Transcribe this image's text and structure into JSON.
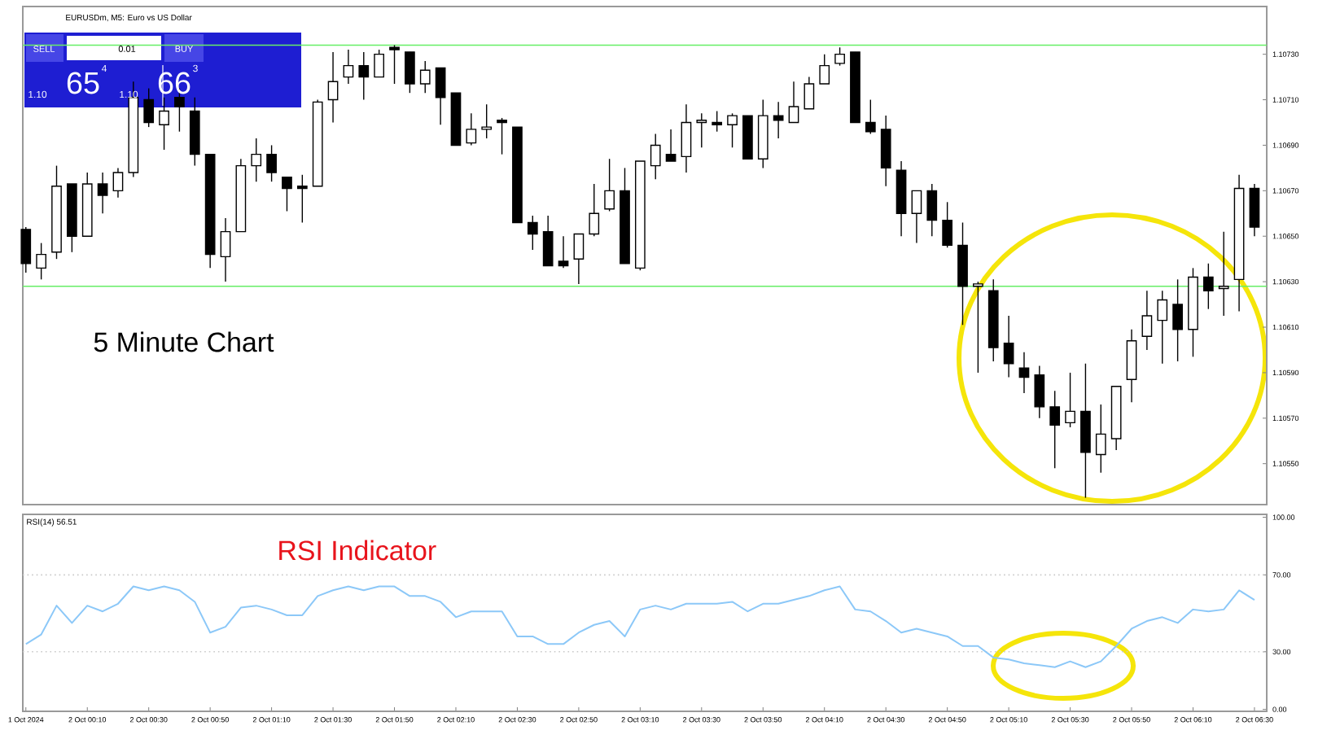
{
  "chart_data": [
    {
      "type": "candlestick",
      "title": "EURUSDm, M5: Euro vs US Dollar",
      "color": "#000000",
      "annotations": [
        "5 Minute Chart",
        "SELL",
        "0.01",
        "BUY",
        "1.10",
        "65",
        "4",
        "1.10",
        "66",
        "3"
      ],
      "x": [
        "2024-10-01T23:50",
        "2024-10-01T23:55",
        "2024-10-02T00:00",
        "2024-10-02T00:05",
        "2024-10-02T00:10",
        "2024-10-02T00:15",
        "2024-10-02T00:20",
        "2024-10-02T00:25",
        "2024-10-02T00:30",
        "2024-10-02T00:35",
        "2024-10-02T00:40",
        "2024-10-02T00:45",
        "2024-10-02T00:50",
        "2024-10-02T00:55",
        "2024-10-02T01:00",
        "2024-10-02T01:05",
        "2024-10-02T01:10",
        "2024-10-02T01:15",
        "2024-10-02T01:20",
        "2024-10-02T01:25",
        "2024-10-02T01:30",
        "2024-10-02T01:35",
        "2024-10-02T01:40",
        "2024-10-02T01:45",
        "2024-10-02T01:50",
        "2024-10-02T01:55",
        "2024-10-02T02:00",
        "2024-10-02T02:05",
        "2024-10-02T02:10",
        "2024-10-02T02:15",
        "2024-10-02T02:20",
        "2024-10-02T02:25",
        "2024-10-02T02:30",
        "2024-10-02T02:35",
        "2024-10-02T02:40",
        "2024-10-02T02:45",
        "2024-10-02T02:50",
        "2024-10-02T02:55",
        "2024-10-02T03:00",
        "2024-10-02T03:05",
        "2024-10-02T03:10",
        "2024-10-02T03:15",
        "2024-10-02T03:20",
        "2024-10-02T03:25",
        "2024-10-02T03:30",
        "2024-10-02T03:35",
        "2024-10-02T03:40",
        "2024-10-02T03:45",
        "2024-10-02T03:50",
        "2024-10-02T03:55",
        "2024-10-02T04:00",
        "2024-10-02T04:05",
        "2024-10-02T04:10",
        "2024-10-02T04:15",
        "2024-10-02T04:20",
        "2024-10-02T04:25",
        "2024-10-02T04:30",
        "2024-10-02T04:35",
        "2024-10-02T04:40",
        "2024-10-02T04:45",
        "2024-10-02T04:50",
        "2024-10-02T04:55",
        "2024-10-02T05:00",
        "2024-10-02T05:05",
        "2024-10-02T05:10",
        "2024-10-02T05:15",
        "2024-10-02T05:20",
        "2024-10-02T05:25",
        "2024-10-02T05:30",
        "2024-10-02T05:35",
        "2024-10-02T05:40",
        "2024-10-02T05:45",
        "2024-10-02T05:50",
        "2024-10-02T05:55",
        "2024-10-02T06:00",
        "2024-10-02T06:05",
        "2024-10-02T06:10",
        "2024-10-02T06:15",
        "2024-10-02T06:20",
        "2024-10-02T06:25",
        "2024-10-02T06:30"
      ],
      "ohlc": [
        [
          1.10653,
          1.10654,
          1.10634,
          1.10638
        ],
        [
          1.10636,
          1.10647,
          1.10631,
          1.10642
        ],
        [
          1.10643,
          1.10681,
          1.1064,
          1.10672
        ],
        [
          1.10673,
          1.10673,
          1.10643,
          1.1065
        ],
        [
          1.1065,
          1.10678,
          1.1065,
          1.10673
        ],
        [
          1.10673,
          1.10678,
          1.1066,
          1.10668
        ],
        [
          1.1067,
          1.1068,
          1.10667,
          1.10678
        ],
        [
          1.10678,
          1.10718,
          1.10676,
          1.10711
        ],
        [
          1.1071,
          1.10715,
          1.10698,
          1.107
        ],
        [
          1.10699,
          1.10711,
          1.10688,
          1.10705
        ],
        [
          1.10711,
          1.10715,
          1.10696,
          1.10707
        ],
        [
          1.10705,
          1.10711,
          1.10681,
          1.10686
        ],
        [
          1.10686,
          1.10686,
          1.10636,
          1.10642
        ],
        [
          1.10641,
          1.10658,
          1.1063,
          1.10652
        ],
        [
          1.10652,
          1.10684,
          1.10652,
          1.10681
        ],
        [
          1.10681,
          1.10693,
          1.10674,
          1.10686
        ],
        [
          1.10686,
          1.1069,
          1.10674,
          1.10678
        ],
        [
          1.10676,
          1.10676,
          1.10661,
          1.10671
        ],
        [
          1.10672,
          1.10677,
          1.10656,
          1.10671
        ],
        [
          1.10672,
          1.1071,
          1.10672,
          1.10709
        ],
        [
          1.1071,
          1.10731,
          1.107,
          1.10718
        ],
        [
          1.1072,
          1.10732,
          1.10717,
          1.10725
        ],
        [
          1.10725,
          1.10731,
          1.1071,
          1.1072
        ],
        [
          1.1072,
          1.10732,
          1.1072,
          1.1073
        ],
        [
          1.10733,
          1.10734,
          1.10717,
          1.10732
        ],
        [
          1.10731,
          1.10731,
          1.10713,
          1.10717
        ],
        [
          1.10717,
          1.10727,
          1.10713,
          1.10723
        ],
        [
          1.10724,
          1.10724,
          1.10699,
          1.10711
        ],
        [
          1.10713,
          1.10713,
          1.1069,
          1.1069
        ],
        [
          1.10691,
          1.10704,
          1.1069,
          1.10697
        ],
        [
          1.10697,
          1.10708,
          1.10693,
          1.10698
        ],
        [
          1.10701,
          1.10702,
          1.10686,
          1.107
        ],
        [
          1.10698,
          1.10698,
          1.10656,
          1.10656
        ],
        [
          1.10656,
          1.10659,
          1.10644,
          1.10651
        ],
        [
          1.10652,
          1.10659,
          1.10637,
          1.10637
        ],
        [
          1.10639,
          1.1065,
          1.10636,
          1.10637
        ],
        [
          1.1064,
          1.10651,
          1.10629,
          1.10651
        ],
        [
          1.10651,
          1.10673,
          1.1065,
          1.1066
        ],
        [
          1.10662,
          1.10684,
          1.10661,
          1.1067
        ],
        [
          1.1067,
          1.1068,
          1.10638,
          1.10638
        ],
        [
          1.10636,
          1.10683,
          1.10635,
          1.10683
        ],
        [
          1.10681,
          1.10695,
          1.10675,
          1.1069
        ],
        [
          1.10686,
          1.10697,
          1.10683,
          1.10683
        ],
        [
          1.10685,
          1.10708,
          1.10678,
          1.107
        ],
        [
          1.107,
          1.10704,
          1.10689,
          1.10701
        ],
        [
          1.107,
          1.10705,
          1.10696,
          1.10699
        ],
        [
          1.10699,
          1.10704,
          1.10689,
          1.10703
        ],
        [
          1.10703,
          1.10703,
          1.10684,
          1.10684
        ],
        [
          1.10684,
          1.1071,
          1.1068,
          1.10703
        ],
        [
          1.10703,
          1.10709,
          1.10693,
          1.10701
        ],
        [
          1.107,
          1.10718,
          1.107,
          1.10707
        ],
        [
          1.10706,
          1.1072,
          1.10706,
          1.10717
        ],
        [
          1.10717,
          1.1073,
          1.10717,
          1.10725
        ],
        [
          1.10726,
          1.10733,
          1.10725,
          1.1073
        ],
        [
          1.10731,
          1.10731,
          1.107,
          1.107
        ],
        [
          1.107,
          1.1071,
          1.10695,
          1.10696
        ],
        [
          1.10697,
          1.10703,
          1.10672,
          1.1068
        ],
        [
          1.10679,
          1.10683,
          1.1065,
          1.1066
        ],
        [
          1.1066,
          1.1067,
          1.10647,
          1.1067
        ],
        [
          1.1067,
          1.10673,
          1.1065,
          1.10657
        ],
        [
          1.10657,
          1.10665,
          1.10645,
          1.10646
        ],
        [
          1.10646,
          1.10656,
          1.10611,
          1.10628
        ],
        [
          1.10628,
          1.1063,
          1.1059,
          1.10629
        ],
        [
          1.10626,
          1.10631,
          1.10595,
          1.10601
        ],
        [
          1.10603,
          1.10615,
          1.10588,
          1.10594
        ],
        [
          1.10592,
          1.10599,
          1.10581,
          1.10588
        ],
        [
          1.10589,
          1.10593,
          1.1057,
          1.10575
        ],
        [
          1.10575,
          1.10582,
          1.10548,
          1.10567
        ],
        [
          1.10568,
          1.1059,
          1.10566,
          1.10573
        ],
        [
          1.10573,
          1.10594,
          1.10535,
          1.10555
        ],
        [
          1.10554,
          1.10576,
          1.10546,
          1.10563
        ],
        [
          1.10561,
          1.10584,
          1.10556,
          1.10584
        ],
        [
          1.10587,
          1.10609,
          1.10577,
          1.10604
        ],
        [
          1.10606,
          1.10626,
          1.106,
          1.10615
        ],
        [
          1.10613,
          1.10626,
          1.10594,
          1.10622
        ],
        [
          1.1062,
          1.10631,
          1.10595,
          1.10609
        ],
        [
          1.10609,
          1.10636,
          1.10597,
          1.10632
        ],
        [
          1.10632,
          1.10638,
          1.10618,
          1.10626
        ],
        [
          1.10627,
          1.10652,
          1.10615,
          1.10628
        ],
        [
          1.10631,
          1.10677,
          1.10617,
          1.10671
        ],
        [
          1.10671,
          1.10673,
          1.1065,
          1.10654
        ]
      ],
      "xlim": [
        "2024-10-01T23:49",
        "2024-10-02T06:34"
      ],
      "ylim": [
        1.10532,
        1.10751
      ],
      "yticks": [
        {
          "value": 1.1073,
          "label": "1.10730"
        },
        {
          "value": 1.1071,
          "label": "1.10710"
        },
        {
          "value": 1.1069,
          "label": "1.10690"
        },
        {
          "value": 1.1067,
          "label": "1.10670"
        },
        {
          "value": 1.1065,
          "label": "1.10650"
        },
        {
          "value": 1.1063,
          "label": "1.10630"
        },
        {
          "value": 1.1061,
          "label": "1.10610"
        },
        {
          "value": 1.1059,
          "label": "1.10590"
        },
        {
          "value": 1.1057,
          "label": "1.10570"
        },
        {
          "value": 1.1055,
          "label": "1.10550"
        }
      ],
      "ref_lines": [
        {
          "axis": "y",
          "value": 1.10734,
          "color": "#66ee66",
          "line_style": "solid"
        },
        {
          "axis": "y",
          "value": 1.10628,
          "color": "#66ee66",
          "line_style": "solid"
        }
      ],
      "tick_labels": "y"
    },
    {
      "type": "line",
      "title": "RSI(14) 56.51",
      "annotations": [
        "RSI Indicator"
      ],
      "x": [
        "2024-10-01T23:50",
        "2024-10-01T23:55",
        "2024-10-02T00:00",
        "2024-10-02T00:05",
        "2024-10-02T00:10",
        "2024-10-02T00:15",
        "2024-10-02T00:20",
        "2024-10-02T00:25",
        "2024-10-02T00:30",
        "2024-10-02T00:35",
        "2024-10-02T00:40",
        "2024-10-02T00:45",
        "2024-10-02T00:50",
        "2024-10-02T00:55",
        "2024-10-02T01:00",
        "2024-10-02T01:05",
        "2024-10-02T01:10",
        "2024-10-02T01:15",
        "2024-10-02T01:20",
        "2024-10-02T01:25",
        "2024-10-02T01:30",
        "2024-10-02T01:35",
        "2024-10-02T01:40",
        "2024-10-02T01:45",
        "2024-10-02T01:50",
        "2024-10-02T01:55",
        "2024-10-02T02:00",
        "2024-10-02T02:05",
        "2024-10-02T02:10",
        "2024-10-02T02:15",
        "2024-10-02T02:20",
        "2024-10-02T02:25",
        "2024-10-02T02:30",
        "2024-10-02T02:35",
        "2024-10-02T02:40",
        "2024-10-02T02:45",
        "2024-10-02T02:50",
        "2024-10-02T02:55",
        "2024-10-02T03:00",
        "2024-10-02T03:05",
        "2024-10-02T03:10",
        "2024-10-02T03:15",
        "2024-10-02T03:20",
        "2024-10-02T03:25",
        "2024-10-02T03:30",
        "2024-10-02T03:35",
        "2024-10-02T03:40",
        "2024-10-02T03:45",
        "2024-10-02T03:50",
        "2024-10-02T03:55",
        "2024-10-02T04:00",
        "2024-10-02T04:05",
        "2024-10-02T04:10",
        "2024-10-02T04:15",
        "2024-10-02T04:20",
        "2024-10-02T04:25",
        "2024-10-02T04:30",
        "2024-10-02T04:35",
        "2024-10-02T04:40",
        "2024-10-02T04:45",
        "2024-10-02T04:50",
        "2024-10-02T04:55",
        "2024-10-02T05:00",
        "2024-10-02T05:05",
        "2024-10-02T05:10",
        "2024-10-02T05:15",
        "2024-10-02T05:20",
        "2024-10-02T05:25",
        "2024-10-02T05:30",
        "2024-10-02T05:35",
        "2024-10-02T05:40",
        "2024-10-02T05:45",
        "2024-10-02T05:50",
        "2024-10-02T05:55",
        "2024-10-02T06:00",
        "2024-10-02T06:05",
        "2024-10-02T06:10",
        "2024-10-02T06:15",
        "2024-10-02T06:20",
        "2024-10-02T06:25",
        "2024-10-02T06:30"
      ],
      "series": [
        {
          "color": "#8cc8f8",
          "values": [
            34,
            39,
            54,
            45,
            54,
            51,
            55,
            64,
            62,
            64,
            62,
            56,
            40,
            43,
            53,
            54,
            52,
            49,
            49,
            59,
            62,
            64,
            62,
            64,
            64,
            59,
            59,
            56,
            48,
            51,
            51,
            51,
            38,
            38,
            34,
            34,
            40,
            44,
            46,
            38,
            52,
            54,
            52,
            55,
            55,
            55,
            56,
            51,
            55,
            55,
            57,
            59,
            62,
            64,
            52,
            51,
            46,
            40,
            42,
            40,
            38,
            33,
            33,
            27,
            26,
            24,
            23,
            22,
            25,
            22,
            25,
            33,
            42,
            46,
            48,
            45,
            52,
            51,
            52,
            62,
            57
          ]
        }
      ],
      "xlim": [
        "2024-10-01T23:49",
        "2024-10-02T06:34"
      ],
      "ylim": [
        -1,
        101.5
      ],
      "yticks": [
        {
          "value": 100,
          "label": "100.00"
        },
        {
          "value": 70,
          "label": "70.00"
        },
        {
          "value": 30,
          "label": "30.00"
        },
        {
          "value": 0,
          "label": "0.00"
        }
      ],
      "xticks": [
        {
          "value": "2024-10-01T23:50",
          "label": "1 Oct 2024"
        },
        {
          "value": "2024-10-02T00:10",
          "label": "2 Oct 00:10"
        },
        {
          "value": "2024-10-02T00:30",
          "label": "2 Oct 00:30"
        },
        {
          "value": "2024-10-02T00:50",
          "label": "2 Oct 00:50"
        },
        {
          "value": "2024-10-02T01:10",
          "label": "2 Oct 01:10"
        },
        {
          "value": "2024-10-02T01:30",
          "label": "2 Oct 01:30"
        },
        {
          "value": "2024-10-02T01:50",
          "label": "2 Oct 01:50"
        },
        {
          "value": "2024-10-02T02:10",
          "label": "2 Oct 02:10"
        },
        {
          "value": "2024-10-02T02:30",
          "label": "2 Oct 02:30"
        },
        {
          "value": "2024-10-02T02:50",
          "label": "2 Oct 02:50"
        },
        {
          "value": "2024-10-02T03:10",
          "label": "2 Oct 03:10"
        },
        {
          "value": "2024-10-02T03:30",
          "label": "2 Oct 03:30"
        },
        {
          "value": "2024-10-02T03:50",
          "label": "2 Oct 03:50"
        },
        {
          "value": "2024-10-02T04:10",
          "label": "2 Oct 04:10"
        },
        {
          "value": "2024-10-02T04:30",
          "label": "2 Oct 04:30"
        },
        {
          "value": "2024-10-02T04:50",
          "label": "2 Oct 04:50"
        },
        {
          "value": "2024-10-02T05:10",
          "label": "2 Oct 05:10"
        },
        {
          "value": "2024-10-02T05:30",
          "label": "2 Oct 05:30"
        },
        {
          "value": "2024-10-02T05:50",
          "label": "2 Oct 05:50"
        },
        {
          "value": "2024-10-02T06:10",
          "label": "2 Oct 06:10"
        },
        {
          "value": "2024-10-02T06:30",
          "label": "2 Oct 06:30"
        }
      ],
      "ref_lines": [
        {
          "axis": "y",
          "value": 70,
          "color": "#c8c8c8",
          "line_style": "dotted"
        },
        {
          "axis": "y",
          "value": 30,
          "color": "#c8c8c8",
          "line_style": "dotted"
        }
      ]
    }
  ]
}
